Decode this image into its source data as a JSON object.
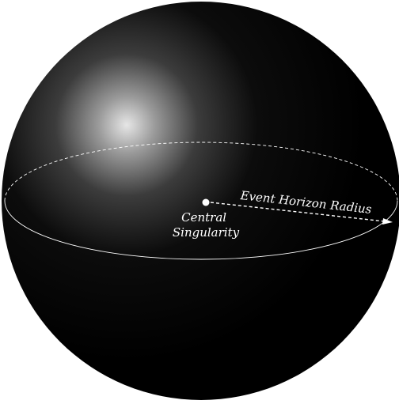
{
  "diagram": {
    "labels": {
      "center": [
        "Central",
        "Singularity"
      ],
      "radius": "Event Horizon Radius"
    },
    "colors": {
      "background": "#ffffff",
      "sphere_dark": "#000000",
      "highlight": "#e6e6e6",
      "lines": "#ffffff"
    }
  }
}
